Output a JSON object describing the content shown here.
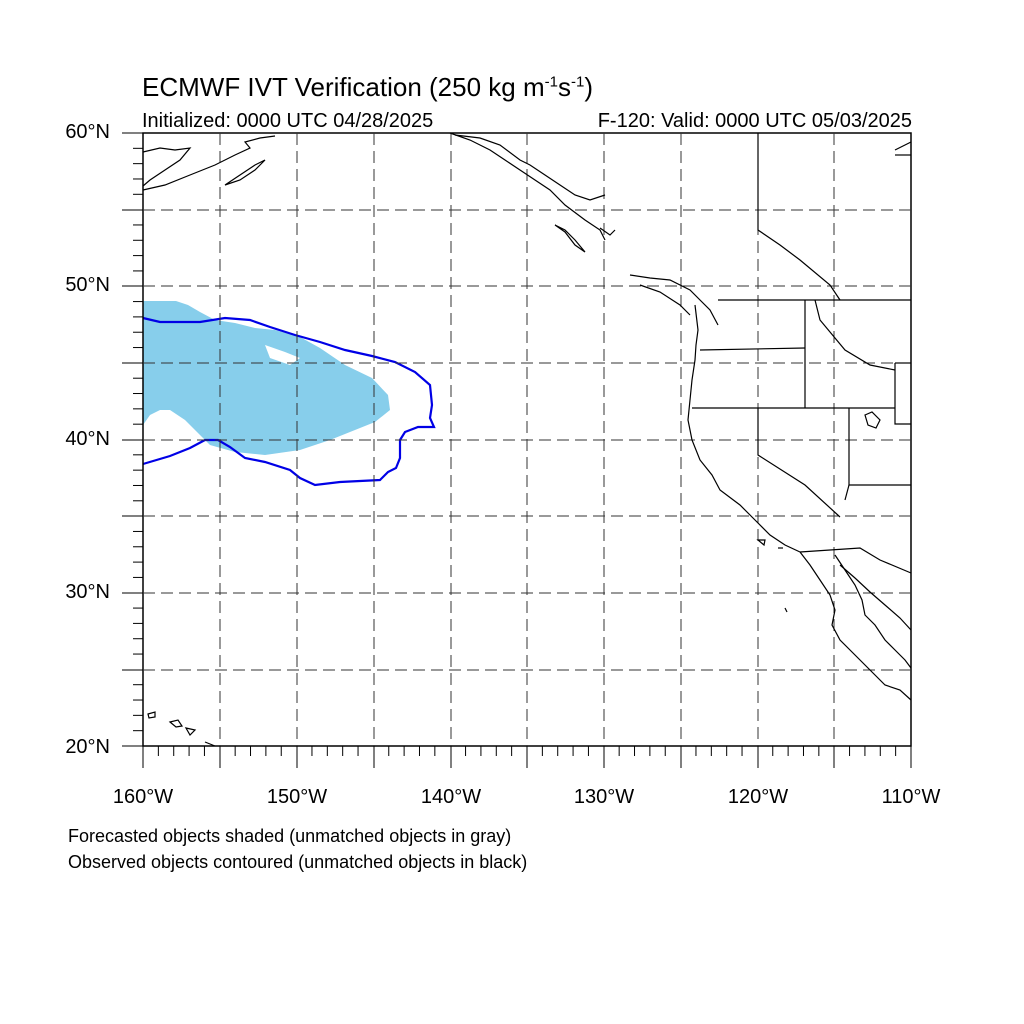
{
  "title_main": "ECMWF IVT Verification (250 kg m",
  "title_sup1": "-1",
  "title_mid": "s",
  "title_sup2": "-1",
  "title_end": ")",
  "initialized": "Initialized: 0000 UTC 04/28/2025",
  "valid": "F-120: Valid: 0000 UTC 05/03/2025",
  "lat_labels": [
    "60°N",
    "50°N",
    "40°N",
    "30°N",
    "20°N"
  ],
  "lon_labels": [
    "160°W",
    "150°W",
    "140°W",
    "130°W",
    "120°W",
    "110°W"
  ],
  "legend_line1": "Forecasted objects shaded (unmatched objects in gray)",
  "legend_line2": "Observed objects contoured (unmatched objects in black)",
  "colors": {
    "forecast_fill": "#87CEEB",
    "observed_contour": "#0000E6",
    "coastline": "#000000",
    "gridline": "#333333"
  },
  "map_extent": {
    "lon_min": -160,
    "lon_max": -110,
    "lat_min": 20,
    "lat_max": 60
  }
}
